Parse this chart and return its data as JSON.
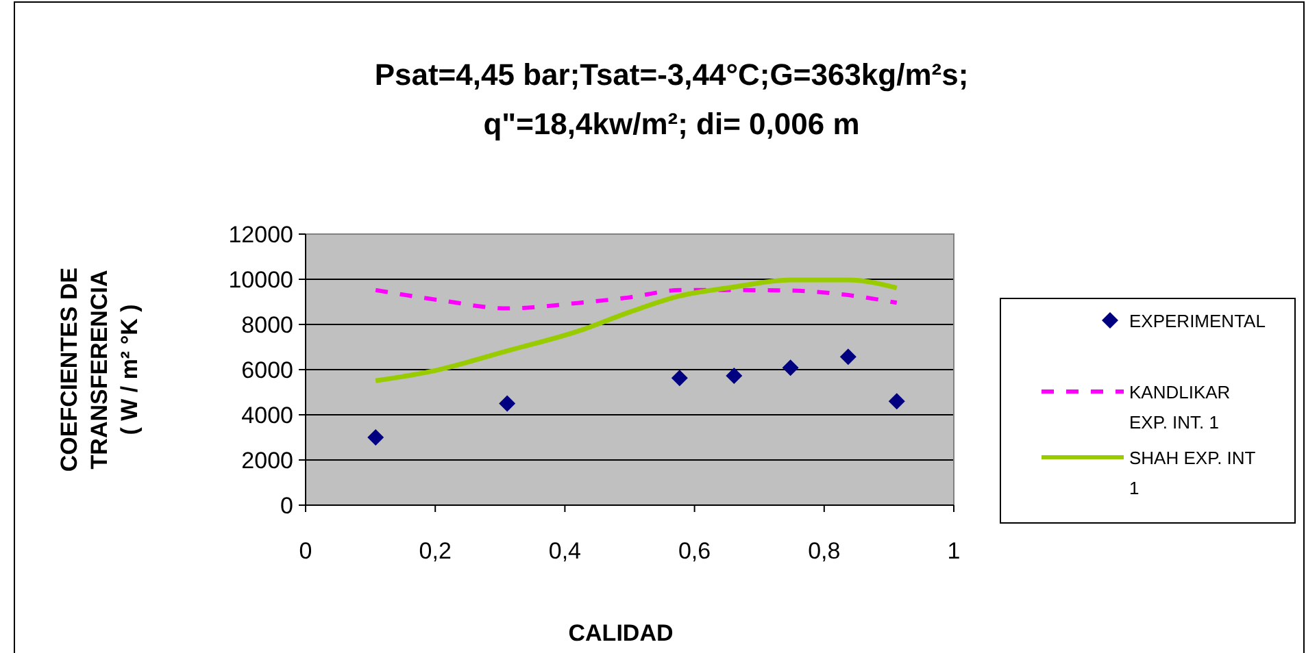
{
  "chart_data": {
    "type": "line",
    "title": "Psat=4,45 bar;Tsat=-3,44°C;G=363kg/m²s;\nq\"=18,4kw/m²; di= 0,006 m",
    "xlabel": "CALIDAD",
    "ylabel": "COEFCIENTES DE\nTRANSFERENCIA\n( W / m² °K )",
    "xlim": [
      0,
      1
    ],
    "xticks": [
      0,
      {
        "value": 0.2,
        "label": "0,2"
      },
      {
        "value": 0.4,
        "label": "0,4"
      },
      {
        "value": 0.6,
        "label": "0,6"
      },
      {
        "value": 0.8,
        "label": "0,8"
      },
      1
    ],
    "ylim": [
      0,
      12000
    ],
    "yticks": [
      0,
      2000,
      4000,
      6000,
      8000,
      10000,
      12000
    ],
    "grid": "y",
    "legend": "right",
    "series": [
      {
        "name": "EXPERIMENTAL",
        "type": "scatter",
        "marker": "diamond",
        "color": "#000080",
        "x": [
          0.108,
          0.311,
          0.577,
          0.661,
          0.748,
          0.837,
          0.912
        ],
        "values": [
          3000,
          4500,
          5630,
          5730,
          6080,
          6570,
          4600
        ]
      },
      {
        "name": "KANDLIKAR EXP. INT. 1",
        "marker": "none",
        "line_style": "dashed",
        "color": "#ff00ff",
        "x": [
          0.108,
          0.21,
          0.311,
          0.42,
          0.5,
          0.577,
          0.661,
          0.748,
          0.837,
          0.912
        ],
        "values": [
          9520,
          9060,
          8710,
          8950,
          9200,
          9520,
          9520,
          9500,
          9300,
          8960
        ]
      },
      {
        "name": "SHAH EXP. INT 1",
        "marker": "none",
        "line_style": "solid",
        "color": "#99cc00",
        "x": [
          0.108,
          0.2,
          0.311,
          0.42,
          0.5,
          0.577,
          0.661,
          0.748,
          0.837,
          0.912
        ],
        "values": [
          5510,
          5960,
          6830,
          7700,
          8550,
          9260,
          9660,
          9970,
          9970,
          9620
        ]
      }
    ]
  }
}
